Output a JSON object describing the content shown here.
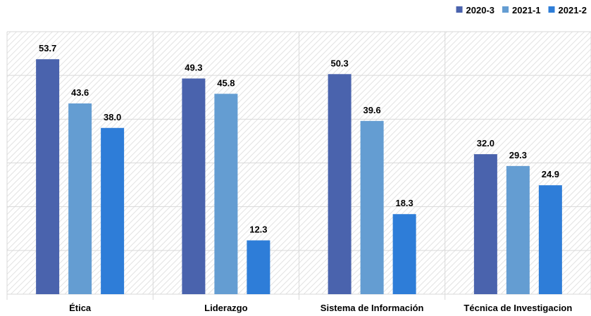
{
  "chart_data": {
    "type": "bar",
    "title": "",
    "xlabel": "",
    "ylabel": "",
    "categories": [
      "Ética",
      "Liderazgo",
      "Sistema de Información",
      "Técnica de Investigacion"
    ],
    "series": [
      {
        "name": "2020-3",
        "color": "#4a63ad",
        "values": [
          53.7,
          49.3,
          50.3,
          32.0
        ]
      },
      {
        "name": "2021-1",
        "color": "#649dd2",
        "values": [
          43.6,
          45.8,
          39.6,
          29.3
        ]
      },
      {
        "name": "2021-2",
        "color": "#2e7dd8",
        "values": [
          38.0,
          12.3,
          18.3,
          24.9
        ]
      }
    ],
    "ylim": [
      0,
      60
    ],
    "grid": true,
    "legend_position": "top-right",
    "colors": {
      "grid": "#d9d9d9",
      "hatch": "#e6e6e6"
    }
  }
}
